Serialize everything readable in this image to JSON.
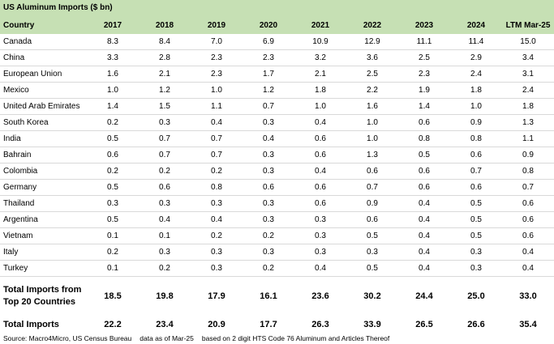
{
  "table": {
    "title": "US Aluminum Imports ($ bn)",
    "columns": [
      "Country",
      "2017",
      "2018",
      "2019",
      "2020",
      "2021",
      "2022",
      "2023",
      "2024",
      "LTM Mar-25"
    ],
    "rows": [
      [
        "Canada",
        "8.3",
        "8.4",
        "7.0",
        "6.9",
        "10.9",
        "12.9",
        "11.1",
        "11.4",
        "15.0"
      ],
      [
        "China",
        "3.3",
        "2.8",
        "2.3",
        "2.3",
        "3.2",
        "3.6",
        "2.5",
        "2.9",
        "3.4"
      ],
      [
        "European Union",
        "1.6",
        "2.1",
        "2.3",
        "1.7",
        "2.1",
        "2.5",
        "2.3",
        "2.4",
        "3.1"
      ],
      [
        "Mexico",
        "1.0",
        "1.2",
        "1.0",
        "1.2",
        "1.8",
        "2.2",
        "1.9",
        "1.8",
        "2.4"
      ],
      [
        "United Arab Emirates",
        "1.4",
        "1.5",
        "1.1",
        "0.7",
        "1.0",
        "1.6",
        "1.4",
        "1.0",
        "1.8"
      ],
      [
        "South Korea",
        "0.2",
        "0.3",
        "0.4",
        "0.3",
        "0.4",
        "1.0",
        "0.6",
        "0.9",
        "1.3"
      ],
      [
        "India",
        "0.5",
        "0.7",
        "0.7",
        "0.4",
        "0.6",
        "1.0",
        "0.8",
        "0.8",
        "1.1"
      ],
      [
        "Bahrain",
        "0.6",
        "0.7",
        "0.7",
        "0.3",
        "0.6",
        "1.3",
        "0.5",
        "0.6",
        "0.9"
      ],
      [
        "Colombia",
        "0.2",
        "0.2",
        "0.2",
        "0.3",
        "0.4",
        "0.6",
        "0.6",
        "0.7",
        "0.8"
      ],
      [
        "Germany",
        "0.5",
        "0.6",
        "0.8",
        "0.6",
        "0.6",
        "0.7",
        "0.6",
        "0.6",
        "0.7"
      ],
      [
        "Thailand",
        "0.3",
        "0.3",
        "0.3",
        "0.3",
        "0.6",
        "0.9",
        "0.4",
        "0.5",
        "0.6"
      ],
      [
        "Argentina",
        "0.5",
        "0.4",
        "0.4",
        "0.3",
        "0.3",
        "0.6",
        "0.4",
        "0.5",
        "0.6"
      ],
      [
        "Vietnam",
        "0.1",
        "0.1",
        "0.2",
        "0.2",
        "0.3",
        "0.5",
        "0.4",
        "0.5",
        "0.6"
      ],
      [
        "Italy",
        "0.2",
        "0.3",
        "0.3",
        "0.3",
        "0.3",
        "0.3",
        "0.4",
        "0.3",
        "0.4"
      ],
      [
        "Turkey",
        "0.1",
        "0.2",
        "0.3",
        "0.2",
        "0.4",
        "0.5",
        "0.4",
        "0.3",
        "0.4"
      ]
    ],
    "totals": [
      [
        "Total Imports from Top 20 Countries",
        "18.5",
        "19.8",
        "17.9",
        "16.1",
        "23.6",
        "30.2",
        "24.4",
        "25.0",
        "33.0"
      ],
      [
        "Total Imports",
        "22.2",
        "23.4",
        "20.9",
        "17.7",
        "26.3",
        "33.9",
        "26.5",
        "26.6",
        "35.4"
      ]
    ]
  },
  "footer": [
    "Source: Macro4Micro, US Census Bureau",
    "data as of Mar-25",
    "based on 2 digit HTS Code 76 Aluminum and Articles Thereof"
  ]
}
